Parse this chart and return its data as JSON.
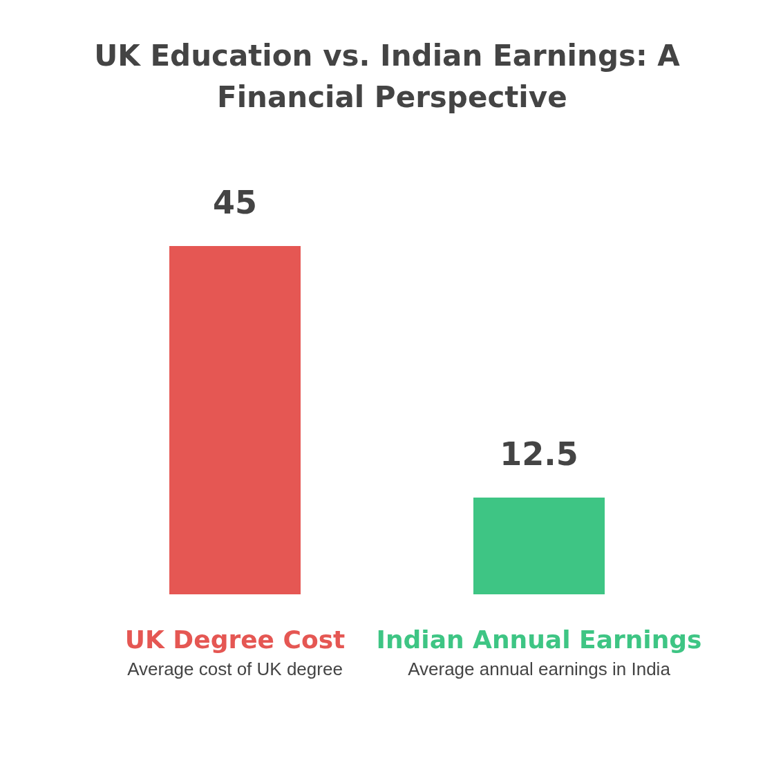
{
  "chart_data": {
    "type": "bar",
    "title": "UK Education vs. Indian Earnings: A Financial Perspective",
    "categories": [
      "UK Degree Cost",
      "Indian Annual Earnings"
    ],
    "values": [
      45,
      12.5
    ],
    "colors": [
      "#e55753",
      "#3ec584"
    ],
    "annotations": [
      "Average cost of UK degree",
      "Average annual earnings in India"
    ],
    "data_labels": true
  }
}
